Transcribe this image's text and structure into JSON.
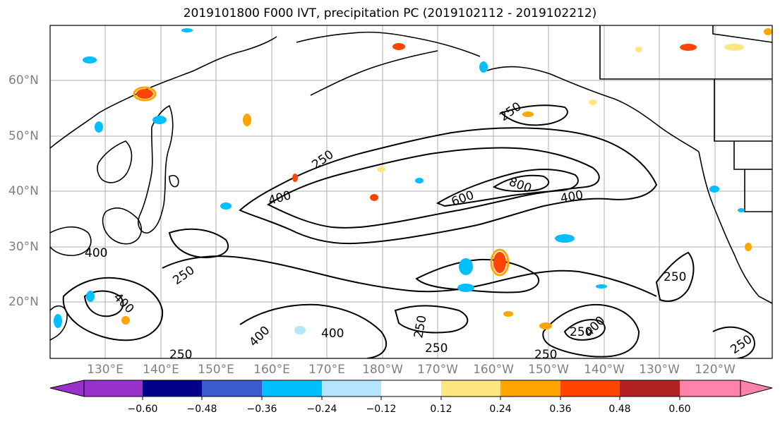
{
  "title": "2019101800 F000 IVT, precipitation PC (2019102112 - 2019102212)",
  "lat_labels": [
    "60°N",
    "50°N",
    "40°N",
    "30°N",
    "20°N"
  ],
  "lon_labels": [
    "130°E",
    "140°E",
    "150°E",
    "160°E",
    "170°E",
    "180°W",
    "170°W",
    "160°W",
    "150°W",
    "140°W",
    "130°W",
    "120°W"
  ],
  "ivt_contour_labels": [
    "250",
    "250",
    "400",
    "600",
    "800",
    "400",
    "400",
    "400",
    "250",
    "400",
    "250",
    "400",
    "250",
    "250",
    "250",
    "250",
    "250",
    "400",
    "250"
  ],
  "colorbar": {
    "ticks": [
      "−0.60",
      "−0.48",
      "−0.36",
      "−0.24",
      "−0.12",
      "0.12",
      "0.24",
      "0.36",
      "0.48",
      "0.60"
    ],
    "colors": [
      "#9932cc",
      "#00008b",
      "#3a5bcc",
      "#00bfff",
      "#b3e5fc",
      "#ffffff",
      "#ffe680",
      "#ffa500",
      "#ff4500",
      "#b22222",
      "#ff82ab"
    ]
  }
}
